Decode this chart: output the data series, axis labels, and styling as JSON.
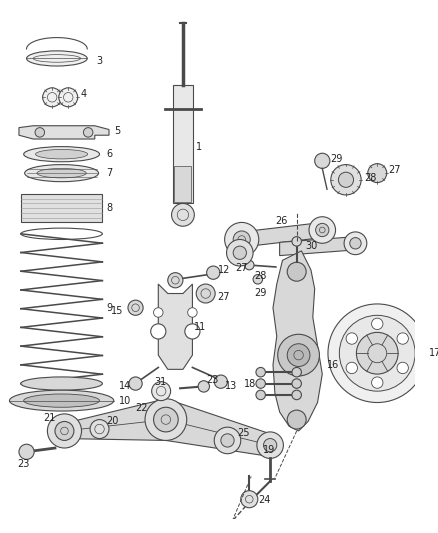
{
  "bg_color": "#ffffff",
  "line_color": "#4a4a4a",
  "fig_width": 4.38,
  "fig_height": 5.33,
  "dpi": 100
}
